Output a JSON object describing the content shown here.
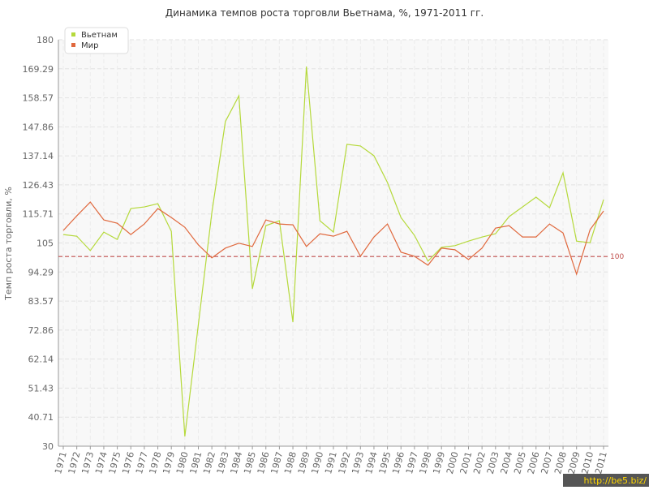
{
  "chart_data": {
    "type": "line",
    "title": "Динамика темпов роста торговли Вьетнама, %, 1971-2011 гг.",
    "y_label": "Темп роста торговли, %",
    "categories": [
      "1971",
      "1972",
      "1973",
      "1974",
      "1975",
      "1976",
      "1977",
      "1978",
      "1979",
      "1980",
      "1981",
      "1982",
      "1983",
      "1984",
      "1985",
      "1986",
      "1987",
      "1988",
      "1989",
      "1990",
      "1991",
      "1992",
      "1993",
      "1994",
      "1995",
      "1996",
      "1997",
      "1998",
      "1999",
      "2000",
      "2001",
      "2002",
      "2003",
      "2004",
      "2005",
      "2006",
      "2007",
      "2008",
      "2009",
      "2010",
      "2011"
    ],
    "series": [
      {
        "name": "Вьетнам",
        "color": "#b5d93b",
        "values": [
          108.1,
          107.5,
          102.2,
          109,
          106.3,
          117.7,
          118.3,
          119.5,
          109.3,
          33.6,
          74.9,
          116.2,
          149.8,
          159.3,
          88.1,
          111.4,
          113.2,
          75.8,
          170.1,
          113.2,
          109,
          141.4,
          140.8,
          137.2,
          127.3,
          114.4,
          107.8,
          98.3,
          103.4,
          104,
          105.7,
          107.2,
          108.4,
          114.7,
          118.3,
          121.9,
          118,
          130.9,
          105.7,
          105.1,
          121
        ]
      },
      {
        "name": "Мир",
        "color": "#e0683d",
        "values": [
          109.6,
          115,
          120.1,
          113.5,
          112.3,
          108.1,
          112,
          117.7,
          114.4,
          110.8,
          104.3,
          99.5,
          103.1,
          104.9,
          103.7,
          113.5,
          112,
          111.7,
          103.7,
          108.4,
          107.5,
          109.3,
          100.1,
          107.2,
          112,
          101.6,
          100.1,
          96.8,
          103.1,
          102.5,
          98.9,
          103.1,
          110.5,
          111.4,
          107.2,
          107.2,
          112,
          108.7,
          93.5,
          109.9,
          116.8
        ]
      }
    ],
    "ylim": [
      30,
      180
    ],
    "yticks": [
      30,
      40.71,
      51.43,
      62.14,
      72.86,
      83.57,
      94.29,
      105,
      115.71,
      126.43,
      137.14,
      147.86,
      158.57,
      169.29,
      180
    ],
    "reference_line": 100,
    "reference_color": "#c0504d",
    "grid": true,
    "legend": "top-left",
    "watermark": "http://be5.biz/"
  }
}
